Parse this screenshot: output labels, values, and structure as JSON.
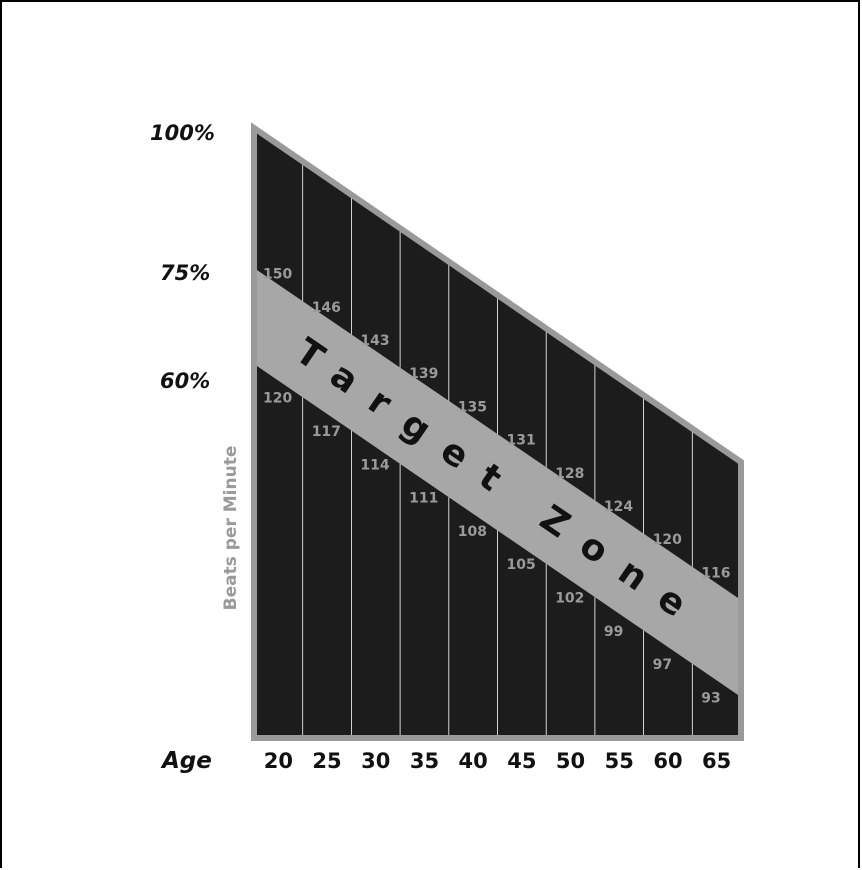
{
  "chart_data": {
    "type": "area",
    "title": "",
    "xlabel": "Age",
    "ylabel": "Beats per Minute",
    "band_label": "Target Zone",
    "percent_labels": [
      "100%",
      "75%",
      "60%"
    ],
    "percent_levels": [
      100,
      75,
      60
    ],
    "x": [
      20,
      25,
      30,
      35,
      40,
      45,
      50,
      55,
      60,
      65
    ],
    "x_tick_labels": [
      "20",
      "25",
      "30",
      "35",
      "40",
      "45",
      "50",
      "55",
      "60",
      "65"
    ],
    "series": [
      {
        "name": "75%",
        "values": [
          150,
          146,
          143,
          139,
          135,
          131,
          128,
          124,
          120,
          116
        ]
      },
      {
        "name": "60%",
        "values": [
          120,
          117,
          114,
          111,
          108,
          105,
          102,
          99,
          97,
          93
        ]
      }
    ],
    "colors": {
      "fill": "#1c1c1c",
      "band": "#a7a7a7",
      "border": "#9a9a9a",
      "text": "#111111",
      "data_label": "#9a9a9a"
    }
  }
}
